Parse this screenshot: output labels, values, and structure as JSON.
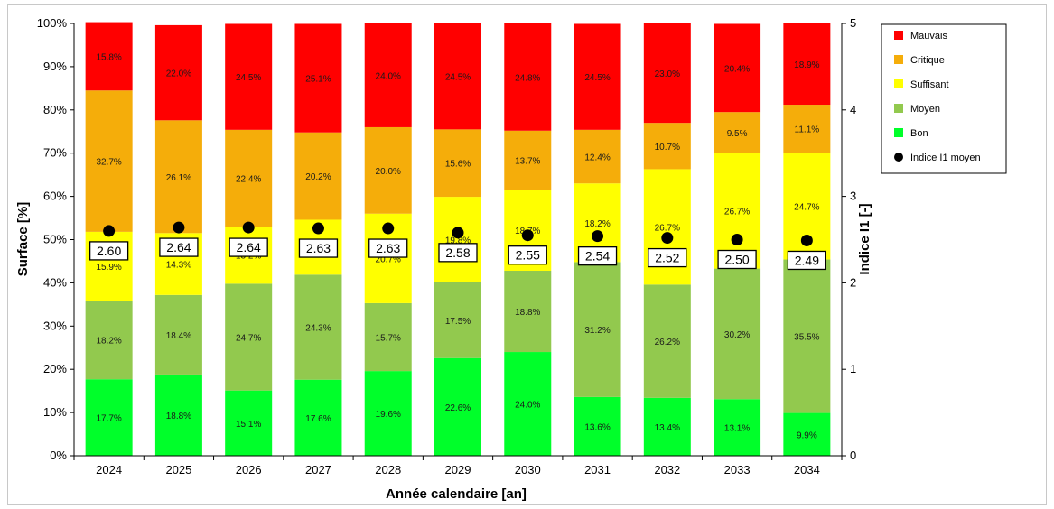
{
  "chart_data": {
    "type": "bar",
    "stacked": true,
    "percent": true,
    "categories": [
      "2024",
      "2025",
      "2026",
      "2027",
      "2028",
      "2029",
      "2030",
      "2031",
      "2032",
      "2033",
      "2034"
    ],
    "series": [
      {
        "name": "Bon",
        "color": "#00ff2a",
        "values": [
          17.7,
          18.8,
          15.1,
          17.6,
          19.6,
          22.6,
          24.0,
          13.6,
          13.4,
          13.1,
          9.9
        ]
      },
      {
        "name": "Moyen",
        "color": "#92c94e",
        "values": [
          18.2,
          18.4,
          24.7,
          24.3,
          15.7,
          17.5,
          18.8,
          31.2,
          26.2,
          30.2,
          35.5
        ]
      },
      {
        "name": "Suffisant",
        "color": "#ffff00",
        "values": [
          15.9,
          14.3,
          13.2,
          12.7,
          20.7,
          19.8,
          18.7,
          18.2,
          26.7,
          26.7,
          24.7
        ]
      },
      {
        "name": "Critique",
        "color": "#f5ad0a",
        "values": [
          32.7,
          26.1,
          22.4,
          20.2,
          20.0,
          15.6,
          13.7,
          12.4,
          10.7,
          9.5,
          11.1
        ]
      },
      {
        "name": "Mauvais",
        "color": "#ff0000",
        "values": [
          15.8,
          22.0,
          24.5,
          25.1,
          24.0,
          24.5,
          24.8,
          24.5,
          23.0,
          20.4,
          18.9
        ]
      }
    ],
    "segment_labels": [
      [
        "17.7%",
        "18.8%",
        "15.1%",
        "17.6%",
        "19.6%",
        "22.6%",
        "24.0%",
        "13.6%",
        "13.4%",
        "13.1%",
        "9.9%"
      ],
      [
        "18.2%",
        "18.4%",
        "24.7%",
        "24.3%",
        "15.7%",
        "17.5%",
        "18.8%",
        "31.2%",
        "26.2%",
        "30.2%",
        "35.5%"
      ],
      [
        "15.9%",
        "14.3%",
        "13.2%",
        "12.7%",
        "20.7%",
        "19.8%",
        "18.7%",
        "18.2%",
        "26.7%",
        "26.7%",
        "24.7%"
      ],
      [
        "32.7%",
        "26.1%",
        "22.4%",
        "20.2%",
        "20.0%",
        "15.6%",
        "13.7%",
        "12.4%",
        "10.7%",
        "9.5%",
        "11.1%"
      ],
      [
        "15.8%",
        "22.0%",
        "24.5%",
        "25.1%",
        "24.0%",
        "24.5%",
        "24.8%",
        "24.5%",
        "23.0%",
        "20.4%",
        "18.9%"
      ]
    ],
    "secondary_series": {
      "name": "Indice I1 moyen",
      "color": "#000000",
      "values": [
        2.6,
        2.64,
        2.64,
        2.63,
        2.63,
        2.58,
        2.55,
        2.54,
        2.52,
        2.5,
        2.49
      ],
      "labels": [
        "2.60",
        "2.64",
        "2.64",
        "2.63",
        "2.63",
        "2.58",
        "2.55",
        "2.54",
        "2.52",
        "2.50",
        "2.49"
      ]
    },
    "xlabel": "Année calendaire [an]",
    "ylabel": "Surface [%]",
    "y2label": "Indice I1 [-]",
    "ylim": [
      0,
      100
    ],
    "y2lim": [
      0,
      5
    ],
    "yticks": [
      "0%",
      "10%",
      "20%",
      "30%",
      "40%",
      "50%",
      "60%",
      "70%",
      "80%",
      "90%",
      "100%"
    ],
    "y2ticks": [
      "0",
      "1",
      "2",
      "3",
      "4",
      "5"
    ],
    "legend_position": "right",
    "legend": [
      {
        "label": "Mauvais",
        "color": "#ff0000",
        "marker": "square"
      },
      {
        "label": "Critique",
        "color": "#f5ad0a",
        "marker": "square"
      },
      {
        "label": "Suffisant",
        "color": "#ffff00",
        "marker": "square"
      },
      {
        "label": "Moyen",
        "color": "#92c94e",
        "marker": "square"
      },
      {
        "label": "Bon",
        "color": "#00ff2a",
        "marker": "square"
      },
      {
        "label": "Indice I1 moyen",
        "color": "#000000",
        "marker": "circle"
      }
    ],
    "grid": false
  }
}
